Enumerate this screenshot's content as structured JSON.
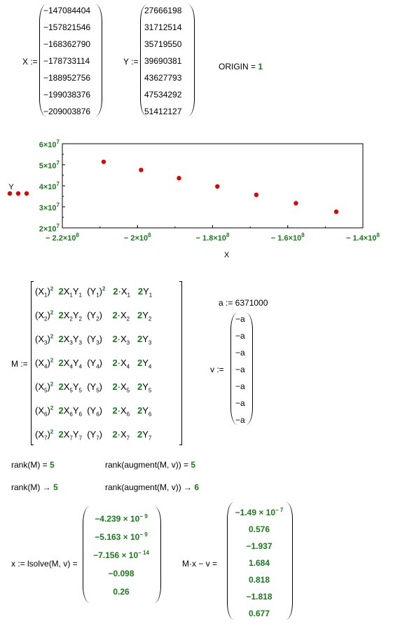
{
  "x_assign": {
    "label": "X :=",
    "values": [
      "−147084404",
      "−157821546",
      "−168362790",
      "−178733114",
      "−188952756",
      "−199038376",
      "−209003876"
    ]
  },
  "y_assign": {
    "label": "Y :=",
    "values": [
      "27666198",
      "31712514",
      "35719550",
      "39690381",
      "43627793",
      "47534292",
      "51412127"
    ]
  },
  "origin": {
    "label": "ORIGIN =",
    "value": "1"
  },
  "chart_data": {
    "type": "scatter",
    "x": [
      -147084404,
      -157821546,
      -168362790,
      -178733114,
      -188952756,
      -199038376,
      -209003876
    ],
    "y": [
      27666198,
      31712514,
      35719550,
      39690381,
      43627793,
      47534292,
      51412127
    ],
    "xlabel": "X",
    "ylabel": "Y",
    "xlim": [
      -220000000,
      -140000000
    ],
    "ylim": [
      20000000,
      60000000
    ],
    "xticks": [
      "− 2.2×10",
      "− 2×10",
      "− 1.8×10",
      "− 1.6×10",
      "− 1.4×10"
    ],
    "xtick_exp": "8",
    "yticks": [
      "2×10",
      "3×10",
      "4×10",
      "5×10",
      "6×10"
    ],
    "ytick_exp": "7",
    "marker_color": "#e00000"
  },
  "matrix_M": {
    "label": "M :="
  },
  "a_def": {
    "text": "a := 6371000"
  },
  "v_def": {
    "label": "v :=",
    "values": [
      "−a",
      "−a",
      "−a",
      "−a",
      "−a",
      "−a",
      "−a"
    ]
  },
  "rank1": {
    "expr": "rank(M) =",
    "result": "5"
  },
  "rank2": {
    "expr": "rank(augment(M, v)) =",
    "result": "5"
  },
  "rank3": {
    "expr": "rank(M) →",
    "result": "5"
  },
  "rank4": {
    "expr": "rank(augment(M, v)) →",
    "result": "6"
  },
  "lsolve": {
    "label": "x := lsolve(M, v) =",
    "values": [
      "−4.239 × 10",
      "−5.163 × 10",
      "−7.156 × 10",
      "−0.098",
      "0.26"
    ],
    "exps": [
      "− 9",
      "− 9",
      "− 14",
      "",
      ""
    ]
  },
  "residual": {
    "label": "M·x − v =",
    "values": [
      "−1.49 × 10",
      "0.576",
      "−1.937",
      "1.684",
      "0.818",
      "−1.818",
      "0.677"
    ],
    "exps": [
      "− 7",
      "",
      "",
      "",
      "",
      "",
      ""
    ]
  }
}
